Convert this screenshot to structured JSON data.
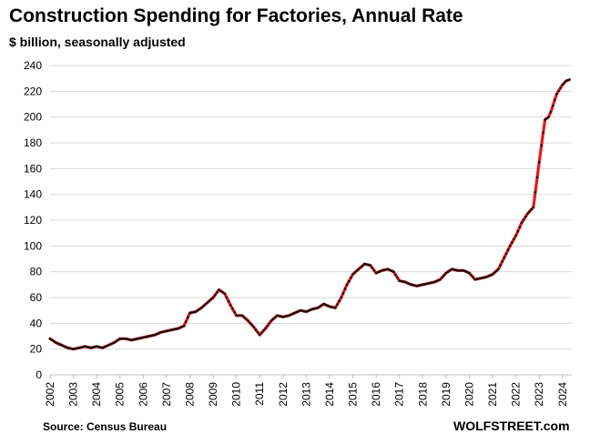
{
  "chart_data": {
    "type": "line",
    "title": "Construction Spending for Factories, Annual Rate",
    "subtitle": "$ billion, seasonally adjusted",
    "xlabel": "",
    "ylabel": "$ billion",
    "ylim": [
      0,
      240
    ],
    "y_ticks": [
      0,
      20,
      40,
      60,
      80,
      100,
      120,
      140,
      160,
      180,
      200,
      220,
      240
    ],
    "x_ticks": [
      "2002",
      "2003",
      "2004",
      "2005",
      "2006",
      "2007",
      "2008",
      "2009",
      "2010",
      "2011",
      "2012",
      "2013",
      "2014",
      "2015",
      "2016",
      "2017",
      "2018",
      "2019",
      "2020",
      "2021",
      "2022",
      "2023",
      "2024"
    ],
    "grid": true,
    "series": [
      {
        "name": "Construction Spending for Factories",
        "line_color": "#e8191a",
        "marker_color": "#111111",
        "x": [
          2002.0,
          2002.25,
          2002.5,
          2002.75,
          2003.0,
          2003.25,
          2003.5,
          2003.75,
          2004.0,
          2004.25,
          2004.5,
          2004.75,
          2005.0,
          2005.25,
          2005.5,
          2005.75,
          2006.0,
          2006.25,
          2006.5,
          2006.75,
          2007.0,
          2007.25,
          2007.5,
          2007.75,
          2008.0,
          2008.25,
          2008.5,
          2008.75,
          2009.0,
          2009.25,
          2009.5,
          2009.75,
          2010.0,
          2010.25,
          2010.5,
          2010.75,
          2011.0,
          2011.25,
          2011.5,
          2011.75,
          2012.0,
          2012.25,
          2012.5,
          2012.75,
          2013.0,
          2013.25,
          2013.5,
          2013.75,
          2014.0,
          2014.25,
          2014.5,
          2014.75,
          2015.0,
          2015.25,
          2015.5,
          2015.75,
          2016.0,
          2016.25,
          2016.5,
          2016.75,
          2017.0,
          2017.25,
          2017.5,
          2017.75,
          2018.0,
          2018.25,
          2018.5,
          2018.75,
          2019.0,
          2019.25,
          2019.5,
          2019.75,
          2020.0,
          2020.25,
          2020.5,
          2020.75,
          2021.0,
          2021.25,
          2021.5,
          2021.75,
          2022.0,
          2022.25,
          2022.5,
          2022.75,
          2023.0,
          2023.1,
          2023.25,
          2023.4,
          2023.5,
          2023.75,
          2024.0,
          2024.15,
          2024.3
        ],
        "values": [
          28,
          25,
          23,
          21,
          20,
          21,
          22,
          21,
          22,
          21,
          23,
          25,
          28,
          28,
          27,
          28,
          29,
          30,
          31,
          33,
          34,
          35,
          36,
          38,
          48,
          49,
          52,
          56,
          60,
          66,
          63,
          54,
          46,
          46,
          42,
          37,
          31,
          36,
          42,
          46,
          45,
          46,
          48,
          50,
          49,
          51,
          52,
          55,
          53,
          52,
          60,
          70,
          78,
          82,
          86,
          85,
          79,
          81,
          82,
          80,
          73,
          72,
          70,
          69,
          70,
          71,
          72,
          74,
          79,
          82,
          81,
          81,
          79,
          74,
          75,
          76,
          78,
          82,
          91,
          100,
          108,
          118,
          125,
          130,
          165,
          178,
          198,
          200,
          204,
          218,
          225,
          228,
          229
        ]
      }
    ],
    "source": "Source: Census Bureau",
    "brand": "WOLFSTREET.com"
  }
}
